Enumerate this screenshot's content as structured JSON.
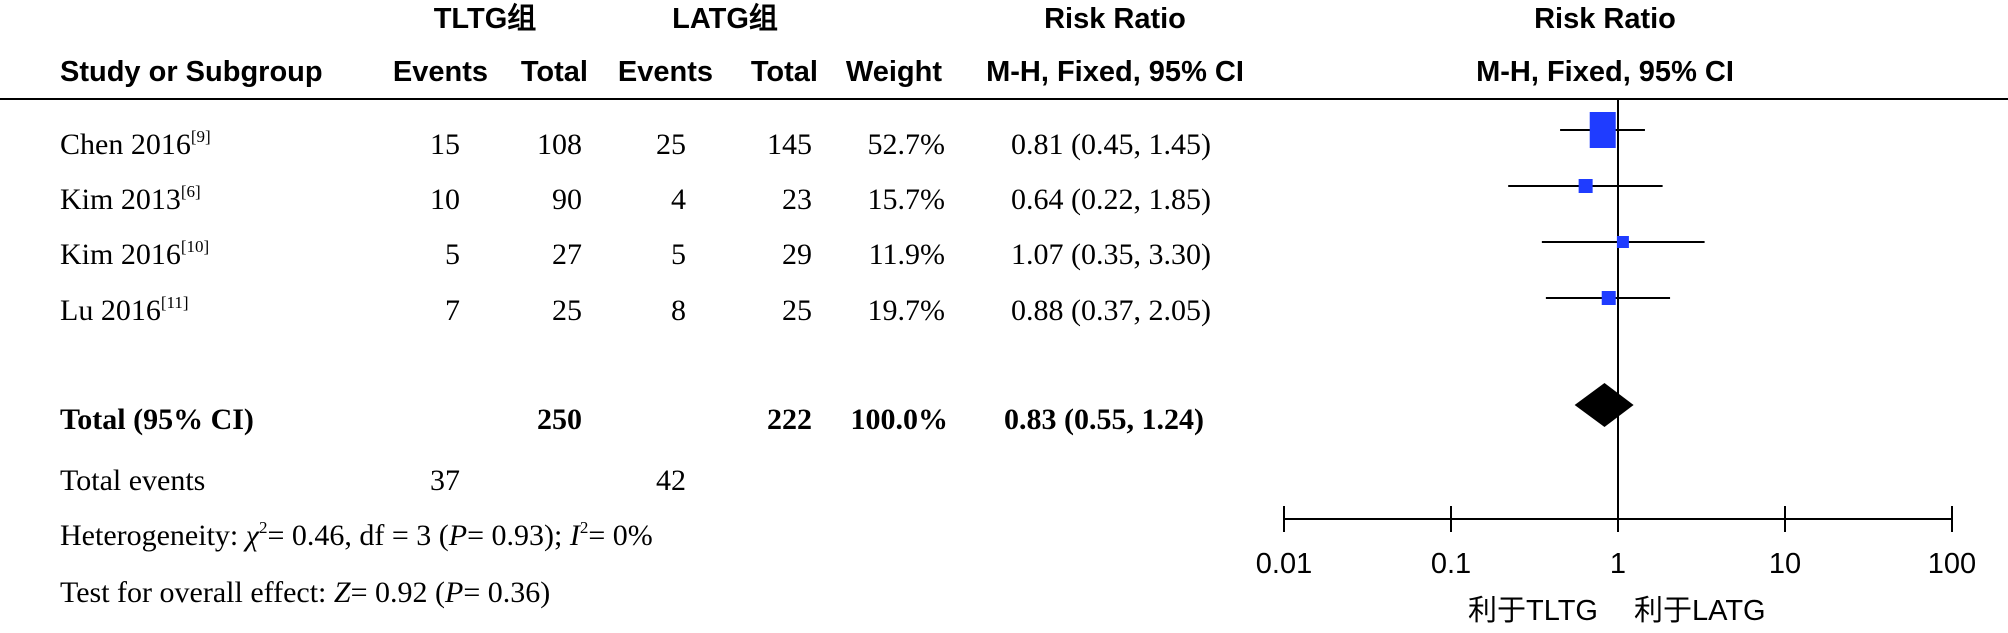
{
  "header": {
    "group1": "TLTG组",
    "group2": "LATG组",
    "rr_title": "Risk Ratio",
    "plot_title": "Risk Ratio",
    "col_study": "Study or Subgroup",
    "col_events1": "Events",
    "col_total1": "Total",
    "col_events2": "Events",
    "col_total2": "Total",
    "col_weight": "Weight",
    "col_method": "M-H, Fixed, 95% CI",
    "plot_method": "M-H, Fixed, 95% CI"
  },
  "studies": [
    {
      "name": "Chen 2016",
      "ref": "[9]",
      "events1": "15",
      "total1": "108",
      "events2": "25",
      "total2": "145",
      "weight": "52.7%",
      "ci_text": "0.81 (0.45, 1.45)"
    },
    {
      "name": "Kim 2013",
      "ref": "[6]",
      "events1": "10",
      "total1": "90",
      "events2": "4",
      "total2": "23",
      "weight": "15.7%",
      "ci_text": "0.64 (0.22, 1.85)"
    },
    {
      "name": "Kim 2016",
      "ref": "[10]",
      "events1": "5",
      "total1": "27",
      "events2": "5",
      "total2": "29",
      "weight": "11.9%",
      "ci_text": "1.07 (0.35, 3.30)"
    },
    {
      "name": "Lu 2016",
      "ref": "[11]",
      "events1": "7",
      "total1": "25",
      "events2": "8",
      "total2": "25",
      "weight": "19.7%",
      "ci_text": "0.88 (0.37, 2.05)"
    }
  ],
  "total": {
    "label": "Total (95% CI)",
    "total1": "250",
    "total2": "222",
    "weight": "100.0%",
    "ci_text": "0.83 (0.55, 1.24)"
  },
  "total_events": {
    "label": "Total events",
    "events1": "37",
    "events2": "42"
  },
  "heterogeneity": {
    "prefix": "Heterogeneity: ",
    "chi_sym": "χ",
    "chi_exp": "2",
    "chi_rest": "= 0.46, df = 3 (",
    "p_sym": "P",
    "p_rest": "= 0.93); ",
    "i_sym": "I",
    "i_exp": "2",
    "i_rest": "= 0%"
  },
  "overall": {
    "prefix": "Test for overall effect: ",
    "z_sym": "Z",
    "z_rest": "= 0.92 (",
    "p_sym": "P",
    "p_rest": "= 0.36)"
  },
  "favours": {
    "left": "利于TLTG",
    "right": "利于LATG"
  },
  "chart_data": {
    "type": "forest",
    "scale": "log",
    "xlim": [
      0.01,
      100
    ],
    "ticks": [
      0.01,
      0.1,
      1,
      10,
      100
    ],
    "tick_labels": [
      "0.01",
      "0.1",
      "1",
      "10",
      "100"
    ],
    "reference_line": 1,
    "studies": [
      {
        "name": "Chen 2016",
        "rr": 0.81,
        "lower": 0.45,
        "upper": 1.45,
        "weight": 52.7
      },
      {
        "name": "Kim 2013",
        "rr": 0.64,
        "lower": 0.22,
        "upper": 1.85,
        "weight": 15.7
      },
      {
        "name": "Kim 2016",
        "rr": 1.07,
        "lower": 0.35,
        "upper": 3.3,
        "weight": 11.9
      },
      {
        "name": "Lu 2016",
        "rr": 0.88,
        "lower": 0.37,
        "upper": 2.05,
        "weight": 19.7
      }
    ],
    "pooled": {
      "rr": 0.83,
      "lower": 0.55,
      "upper": 1.24
    },
    "square_color": "#1f3cff",
    "diamond_color": "#000000"
  }
}
